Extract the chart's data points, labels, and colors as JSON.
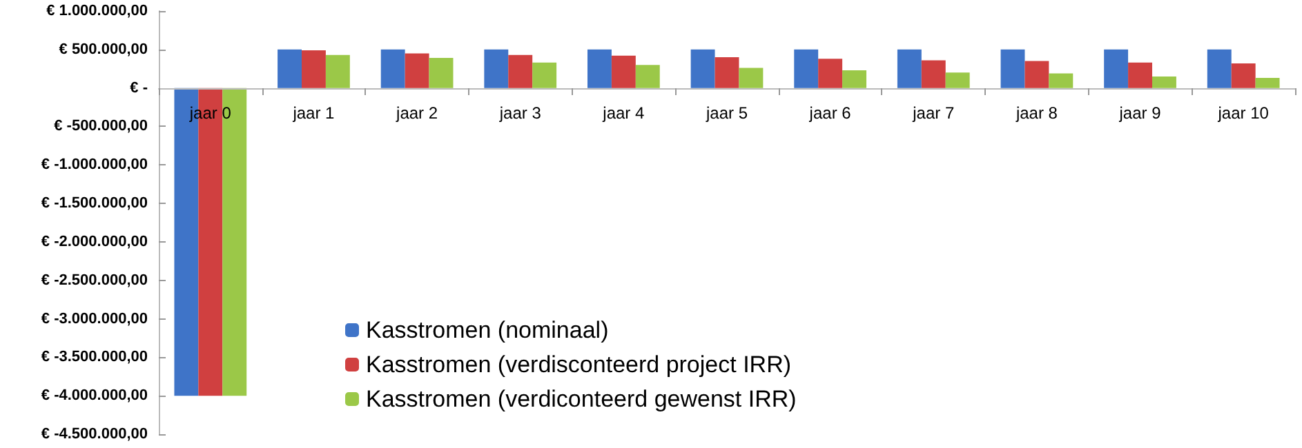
{
  "chart_data": {
    "type": "bar",
    "categories": [
      "jaar 0",
      "jaar 1",
      "jaar 2",
      "jaar 3",
      "jaar 4",
      "jaar 5",
      "jaar 6",
      "jaar 7",
      "jaar 8",
      "jaar 9",
      "jaar 10"
    ],
    "series": [
      {
        "name": "Kasstromen (nominaal)",
        "color": "#3f74c8",
        "values": [
          -4000000,
          500000,
          500000,
          500000,
          500000,
          500000,
          500000,
          500000,
          500000,
          500000,
          500000
        ]
      },
      {
        "name": "Kasstromen (verdisconteerd project IRR)",
        "color": "#d04040",
        "values": [
          -4000000,
          490000,
          450000,
          430000,
          420000,
          400000,
          380000,
          360000,
          350000,
          330000,
          320000
        ]
      },
      {
        "name": "Kasstromen (verdiconteerd gewenst IRR)",
        "color": "#9bc848",
        "values": [
          -4000000,
          430000,
          390000,
          330000,
          300000,
          260000,
          230000,
          200000,
          190000,
          150000,
          130000
        ]
      }
    ],
    "ylim": [
      -4500000,
      1000000
    ],
    "yticks": [
      {
        "value": -4500000,
        "label": "€ -4.500.000,00"
      },
      {
        "value": -4000000,
        "label": "€ -4.000.000,00"
      },
      {
        "value": -3500000,
        "label": "€ -3.500.000,00"
      },
      {
        "value": -3000000,
        "label": "€ -3.000.000,00"
      },
      {
        "value": -2500000,
        "label": "€ -2.500.000,00"
      },
      {
        "value": -2000000,
        "label": "€ -2.000.000,00"
      },
      {
        "value": -1500000,
        "label": "€ -1.500.000,00"
      },
      {
        "value": -1000000,
        "label": "€ -1.000.000,00"
      },
      {
        "value": -500000,
        "label": "€ -500.000,00"
      },
      {
        "value": 0,
        "label": "€ -"
      },
      {
        "value": 500000,
        "label": "€ 500.000,00"
      },
      {
        "value": 1000000,
        "label": "€ 1.000.000,00"
      }
    ],
    "grid": false,
    "legend": "bottom"
  }
}
